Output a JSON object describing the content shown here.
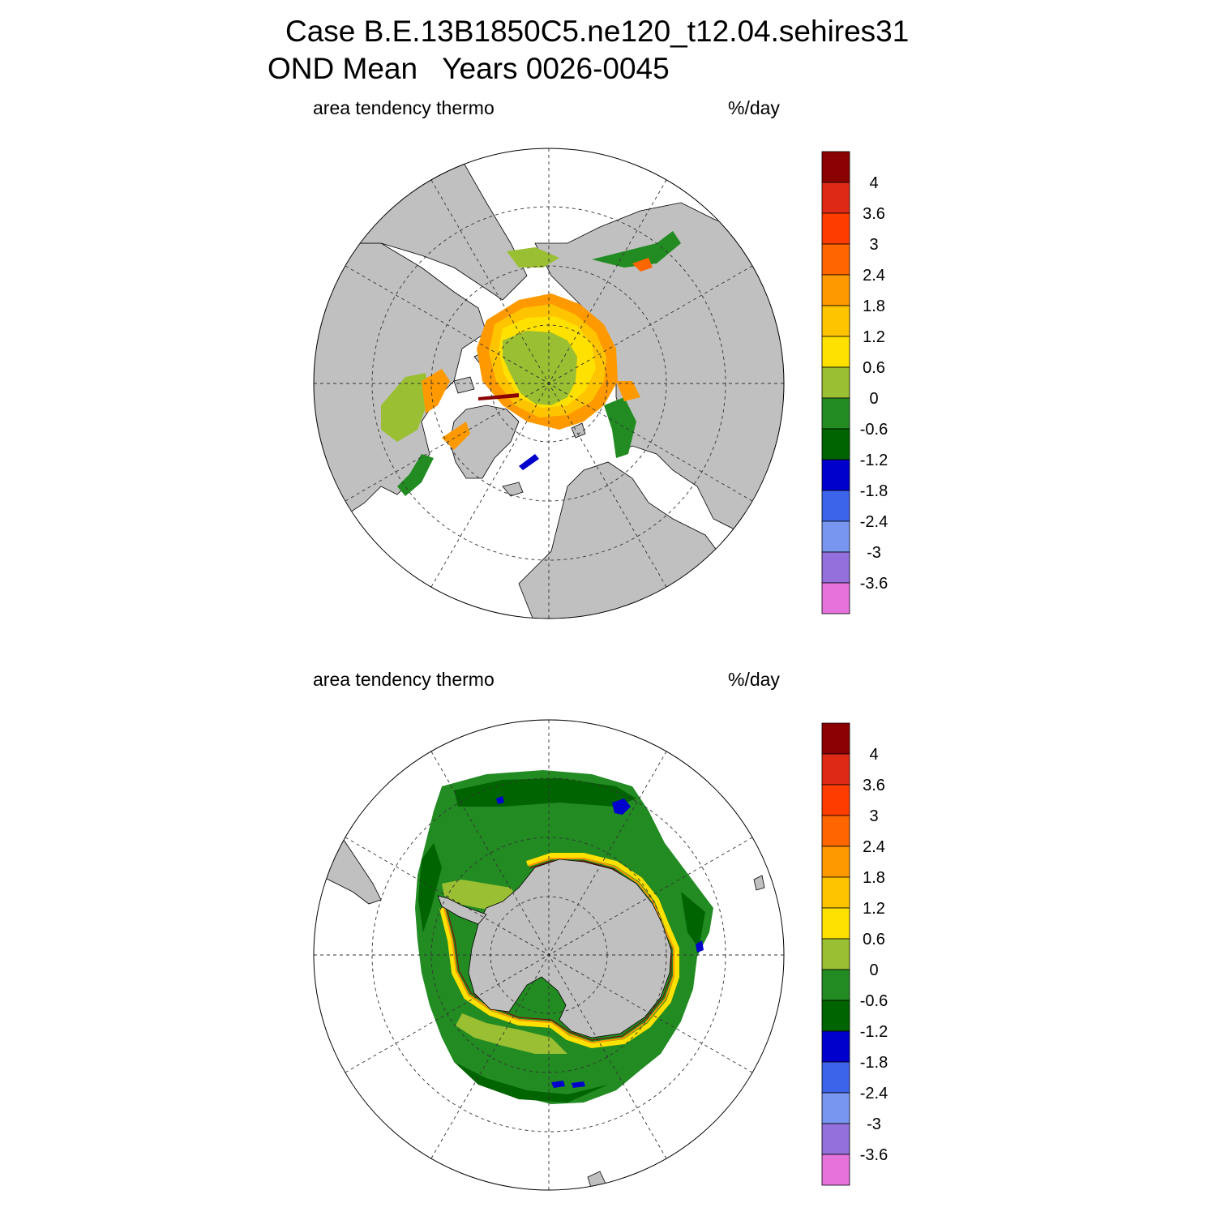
{
  "title": {
    "line1": "Case B.E.13B1850C5.ne120_t12.04.sehires31",
    "line2": "OND Mean   Years 0026-0045"
  },
  "panels": [
    {
      "id": "north",
      "variable": "area tendency thermo",
      "units": "%/day"
    },
    {
      "id": "south",
      "variable": "area tendency thermo",
      "units": "%/day"
    }
  ],
  "colorbar": {
    "labels": [
      "4",
      "3.6",
      "3",
      "2.4",
      "1.8",
      "1.2",
      "0.6",
      "0",
      "-0.6",
      "-1.2",
      "-1.8",
      "-2.4",
      "-3",
      "-3.6"
    ],
    "colors": [
      "#8b0000",
      "#de2a14",
      "#ff3c00",
      "#ff6600",
      "#ff9900",
      "#ffc400",
      "#ffe100",
      "#9abf32",
      "#228b22",
      "#006400",
      "#0000cd",
      "#3c64eb",
      "#7896f0",
      "#9370db",
      "#e673dc"
    ]
  },
  "map_colors": {
    "land": "#c0c0c0",
    "ocean": "#ffffff"
  }
}
